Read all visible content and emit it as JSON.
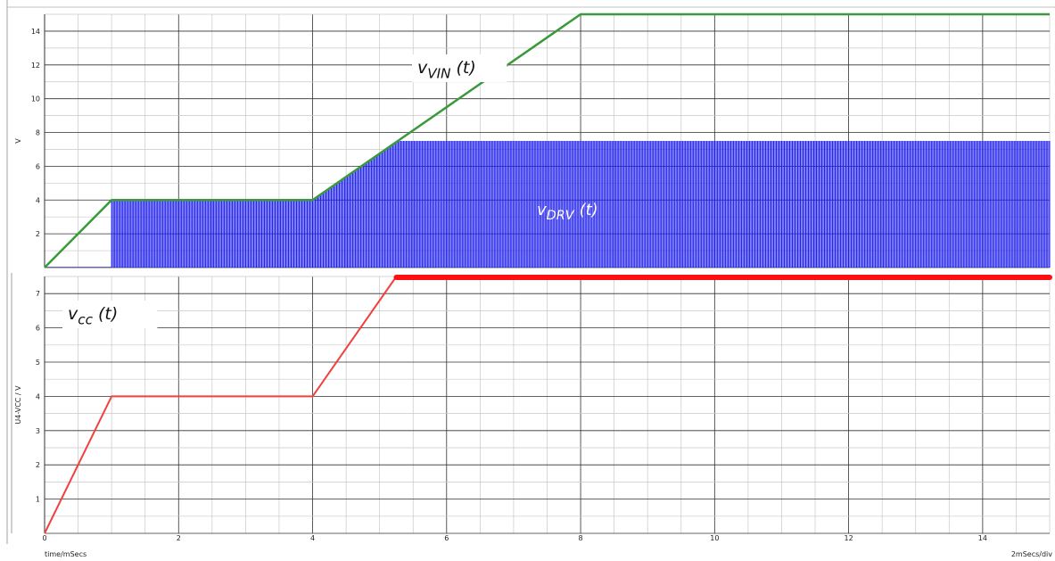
{
  "colors": {
    "vin": "#3a9a3a",
    "drv": "#1a1aee",
    "vcc": "#f04040",
    "vcc_clamped": "#ff1010",
    "grid_major": "#303030",
    "grid_minor": "#c8c8c8",
    "background": "#ffffff"
  },
  "annotations": {
    "vin": {
      "base": "v",
      "sub": "VIN",
      "arg": "(t)"
    },
    "drv": {
      "base": "v",
      "sub": "DRV",
      "arg": "(t)"
    },
    "vcc": {
      "base": "v",
      "sub": "cc",
      "arg": "(t)"
    }
  },
  "footer": {
    "xlabel": "time/mSecs",
    "scale": "2mSecs/div"
  },
  "chart_data": [
    {
      "type": "line",
      "xlabel": "time/mSecs",
      "ylabel": "V",
      "xlim": [
        0,
        15
      ],
      "ylim": [
        0,
        15
      ],
      "xticks": [
        0,
        2,
        4,
        6,
        8,
        10,
        12,
        14
      ],
      "yticks": [
        2,
        4,
        6,
        8,
        10,
        12,
        14
      ],
      "grid": true,
      "series": [
        {
          "name": "vVIN(t)",
          "x": [
            0,
            1,
            4,
            8,
            15
          ],
          "y": [
            0,
            4,
            4,
            15,
            15
          ]
        },
        {
          "name": "vDRV(t)",
          "style": "switching",
          "envelope_x": [
            0,
            1,
            4,
            5.25,
            15
          ],
          "envelope_y": [
            0,
            4,
            4,
            7.5,
            7.5
          ],
          "switching_start": 1,
          "low": 0
        }
      ]
    },
    {
      "type": "line",
      "xlabel": "time/mSecs",
      "ylabel": "U4-VCC / V",
      "xlim": [
        0,
        15
      ],
      "ylim": [
        0,
        7.5
      ],
      "xticks": [
        0,
        2,
        4,
        6,
        8,
        10,
        12,
        14
      ],
      "yticks": [
        1,
        2,
        3,
        4,
        5,
        6,
        7
      ],
      "grid": true,
      "series": [
        {
          "name": "vcc(t)",
          "x": [
            0,
            1,
            4,
            5.25,
            15
          ],
          "y": [
            0,
            4,
            4,
            7.5,
            7.5
          ]
        }
      ]
    }
  ]
}
